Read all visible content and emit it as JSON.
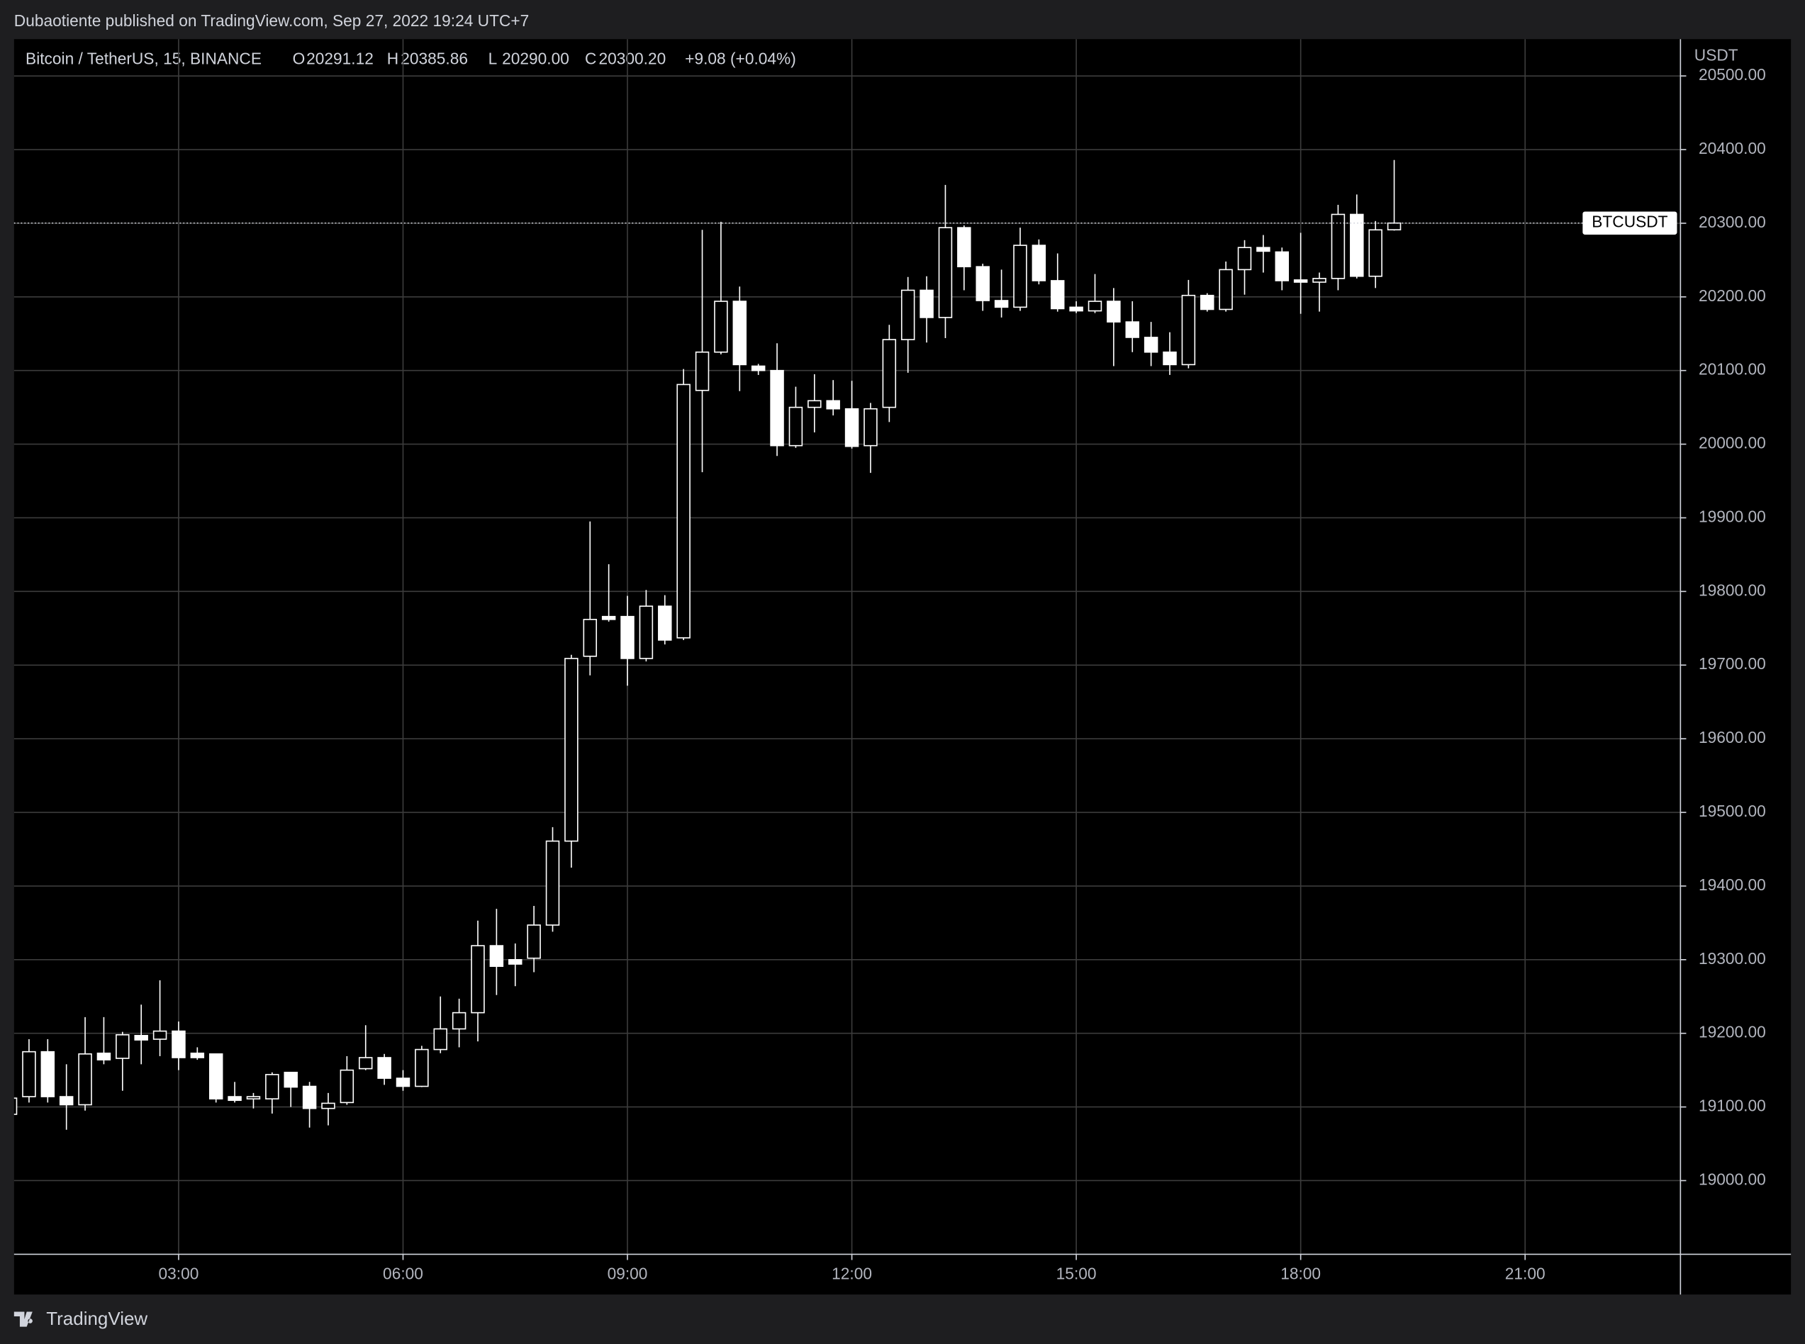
{
  "header": {
    "publisher": "Dubaotiente published on TradingView.com, Sep 27, 2022 19:24 UTC+7",
    "symbol": "Bitcoin / TetherUS, 15, BINANCE",
    "ohlc": [
      {
        "letter": "O",
        "value": "20291.12"
      },
      {
        "letter": "H",
        "value": "20385.86"
      },
      {
        "letter": "L",
        "value": "20290.00"
      },
      {
        "letter": "C",
        "value": "20300.20"
      }
    ],
    "change": "+9.08 (+0.04%)"
  },
  "footer": {
    "brand": "TradingView"
  },
  "chart_data": {
    "type": "candlestick",
    "y_unit": "USDT",
    "x": [
      0.75,
      1,
      1.25,
      1.5,
      1.75,
      2,
      2.25,
      2.5,
      2.75,
      3,
      3.25,
      3.5,
      3.75,
      4,
      4.25,
      4.5,
      4.75,
      5,
      5.25,
      5.5,
      5.75,
      6,
      6.25,
      6.5,
      6.75,
      7,
      7.25,
      7.5,
      7.75,
      8,
      8.25,
      8.5,
      8.75,
      9,
      9.25,
      9.5,
      9.75,
      10,
      10.25,
      10.5,
      10.75,
      11,
      11.25,
      11.5,
      11.75,
      12,
      12.25,
      12.5,
      12.75,
      13,
      13.25,
      13.5,
      13.75,
      14,
      14.25,
      14.5,
      14.75,
      15,
      15.25,
      15.5,
      15.75,
      16,
      16.25,
      16.5,
      16.75,
      17,
      17.25,
      17.5,
      17.75,
      18,
      18.25,
      18.5,
      18.75,
      19,
      19.25
    ],
    "open": [
      19090,
      19114,
      19175,
      19114,
      19103,
      19173,
      19166,
      19197,
      19192,
      19203,
      19173,
      19172,
      19114,
      19111,
      19111,
      19147,
      19128,
      19098,
      19106,
      19152,
      19167,
      19139,
      19128,
      19178,
      19206,
      19228,
      19319,
      19300,
      19302,
      19347,
      19461,
      19712,
      19766,
      19766,
      19709,
      19780,
      19737,
      20073,
      20125,
      20194,
      20106,
      20100,
      19998,
      20050,
      20059,
      20048,
      19998,
      20050,
      20142,
      20209,
      20172,
      20294,
      20241,
      20195,
      20186,
      20270,
      20222,
      20186,
      20181,
      20194,
      20166,
      20145,
      20125,
      20108,
      20202,
      20183,
      20237,
      20267,
      20261,
      20223,
      20220,
      20225,
      20312,
      20228,
      20291.12
    ],
    "high": [
      19115,
      19192,
      19192,
      19158,
      19222,
      19222,
      19202,
      19239,
      19272,
      19216,
      19181,
      19172,
      19134,
      19119,
      19147,
      19147,
      19134,
      19119,
      19169,
      19211,
      19172,
      19150,
      19183,
      19250,
      19247,
      19353,
      19369,
      19322,
      19373,
      19480,
      19714,
      19895,
      19837,
      19794,
      19802,
      19795,
      20102,
      20291,
      20302,
      20214,
      20109,
      20137,
      20078,
      20095,
      20087,
      20086,
      20056,
      20162,
      20227,
      20228,
      20352,
      20297,
      20245,
      20237,
      20294,
      20278,
      20259,
      20194,
      20231,
      20212,
      20194,
      20166,
      20152,
      20223,
      20205,
      20248,
      20277,
      20284,
      20267,
      20287,
      20233,
      20325,
      20339,
      20303,
      20385.86
    ],
    "low": [
      19070,
      19106,
      19106,
      19069,
      19095,
      19158,
      19122,
      19158,
      19169,
      19150,
      19164,
      19106,
      19106,
      19098,
      19091,
      19100,
      19072,
      19075,
      19103,
      19150,
      19130,
      19122,
      19127,
      19173,
      19181,
      19189,
      19252,
      19264,
      19283,
      19338,
      19425,
      19686,
      19759,
      19672,
      19705,
      19728,
      19734,
      19962,
      20122,
      20072,
      20094,
      19984,
      19995,
      20016,
      20039,
      19994,
      19961,
      20030,
      20097,
      20138,
      20144,
      20209,
      20181,
      20172,
      20181,
      20217,
      20180,
      20178,
      20178,
      20106,
      20125,
      20106,
      20094,
      20103,
      20180,
      20180,
      20203,
      20233,
      20209,
      20177,
      20180,
      20209,
      20225,
      20212,
      20290
    ],
    "close": [
      19112,
      19175,
      19114,
      19103,
      19172,
      19164,
      19198,
      19191,
      19203,
      19167,
      19167,
      19111,
      19109,
      19114,
      19144,
      19127,
      19098,
      19105,
      19150,
      19167,
      19139,
      19128,
      19178,
      19206,
      19228,
      19319,
      19291,
      19294,
      19347,
      19461,
      19709,
      19762,
      19762,
      19709,
      19780,
      19734,
      20081,
      20125,
      20194,
      20108,
      20100,
      19998,
      20050,
      20059,
      20048,
      19997,
      20048,
      20142,
      20209,
      20172,
      20294,
      20241,
      20195,
      20186,
      20270,
      20222,
      20184,
      20181,
      20194,
      20166,
      20145,
      20125,
      20108,
      20202,
      20183,
      20237,
      20267,
      20262,
      20222,
      20220,
      20225,
      20312,
      20228,
      20291,
      20300.2
    ],
    "up_color": "#000000",
    "down_color": "#ffffff",
    "wick_color": "#ffffff",
    "xlim": [
      0.8,
      23.077
    ],
    "xticks": [
      {
        "value": 3,
        "label": "03:00"
      },
      {
        "value": 6,
        "label": "06:00"
      },
      {
        "value": 9,
        "label": "09:00"
      },
      {
        "value": 12,
        "label": "12:00"
      },
      {
        "value": 15,
        "label": "15:00"
      },
      {
        "value": 18,
        "label": "18:00"
      },
      {
        "value": 21,
        "label": "21:00"
      }
    ],
    "ylim": [
      18900,
      20550
    ],
    "yticks": [
      {
        "value": 19000,
        "label": "19000.00"
      },
      {
        "value": 19100,
        "label": "19100.00"
      },
      {
        "value": 19200,
        "label": "19200.00"
      },
      {
        "value": 19300,
        "label": "19300.00"
      },
      {
        "value": 19400,
        "label": "19400.00"
      },
      {
        "value": 19500,
        "label": "19500.00"
      },
      {
        "value": 19600,
        "label": "19600.00"
      },
      {
        "value": 19700,
        "label": "19700.00"
      },
      {
        "value": 19800,
        "label": "19800.00"
      },
      {
        "value": 19900,
        "label": "19900.00"
      },
      {
        "value": 20000,
        "label": "20000.00"
      },
      {
        "value": 20100,
        "label": "20100.00"
      },
      {
        "value": 20200,
        "label": "20200.00"
      },
      {
        "value": 20300,
        "label": "20300.00"
      },
      {
        "value": 20400,
        "label": "20400.00"
      },
      {
        "value": 20500,
        "label": "20500.00"
      }
    ],
    "grid": true,
    "last_price": {
      "label": "BTCUSDT",
      "value": 20300.2
    }
  }
}
